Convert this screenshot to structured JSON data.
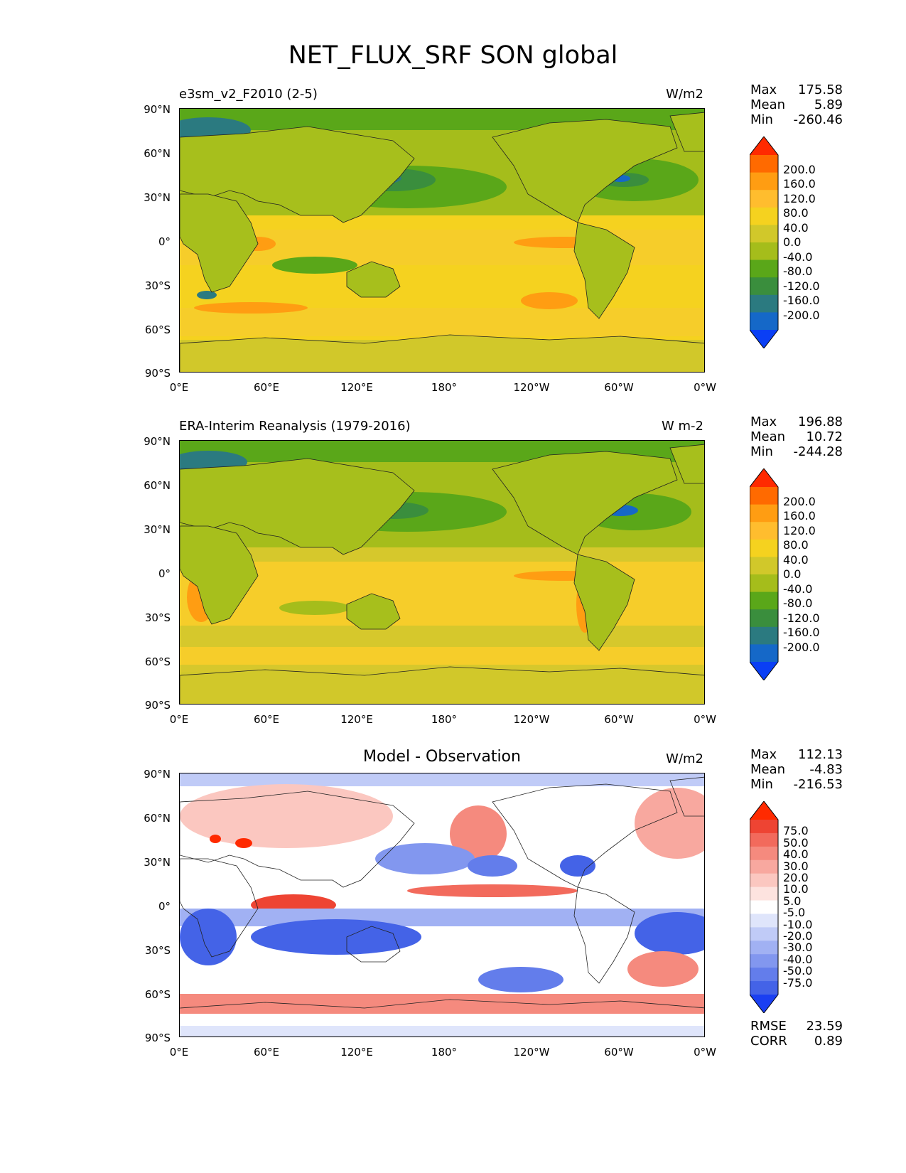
{
  "figure": {
    "title": "NET_FLUX_SRF SON global"
  },
  "axes": {
    "y_ticks": [
      "90°N",
      "60°N",
      "30°N",
      "0°",
      "30°S",
      "60°S",
      "90°S"
    ],
    "x_ticks": [
      "0°E",
      "60°E",
      "120°E",
      "180°",
      "120°W",
      "60°W",
      "0°W"
    ]
  },
  "panels": [
    {
      "id": "model",
      "title": "e3sm_v2_F2010 (2-5)",
      "units": "W/m2",
      "stats": {
        "max_label": "Max",
        "max": "175.58",
        "mean_label": "Mean",
        "mean": "5.89",
        "min_label": "Min",
        "min": "-260.46"
      },
      "colorbar": {
        "labels": [
          "200.0",
          "160.0",
          "120.0",
          "80.0",
          "40.0",
          "0.0",
          "-40.0",
          "-80.0",
          "-120.0",
          "-160.0",
          "-200.0"
        ],
        "colors": [
          "#ff2a00",
          "#ff6a00",
          "#ff9d12",
          "#ffbd2e",
          "#f5d21f",
          "#d1c82a",
          "#a5bd1b",
          "#5aa719",
          "#3a8e3d",
          "#2b7a80",
          "#1568c8",
          "#0a3ff5"
        ]
      }
    },
    {
      "id": "obs",
      "title": "ERA-Interim Reanalysis (1979-2016)",
      "units": "W m-2",
      "stats": {
        "max_label": "Max",
        "max": "196.88",
        "mean_label": "Mean",
        "mean": "10.72",
        "min_label": "Min",
        "min": "-244.28"
      },
      "colorbar": {
        "labels": [
          "200.0",
          "160.0",
          "120.0",
          "80.0",
          "40.0",
          "0.0",
          "-40.0",
          "-80.0",
          "-120.0",
          "-160.0",
          "-200.0"
        ],
        "colors": [
          "#ff2a00",
          "#ff6a00",
          "#ff9d12",
          "#ffbd2e",
          "#f5d21f",
          "#d1c82a",
          "#a5bd1b",
          "#5aa719",
          "#3a8e3d",
          "#2b7a80",
          "#1568c8",
          "#0a3ff5"
        ]
      }
    },
    {
      "id": "diff",
      "title": "Model - Observation",
      "units": "W/m2",
      "stats": {
        "max_label": "Max",
        "max": "112.13",
        "mean_label": "Mean",
        "mean": "-4.83",
        "min_label": "Min",
        "min": "-216.53"
      },
      "rmse_label": "RMSE",
      "rmse": "23.59",
      "corr_label": "CORR",
      "corr": "0.89",
      "colorbar": {
        "labels": [
          "75.0",
          "50.0",
          "40.0",
          "30.0",
          "20.0",
          "10.0",
          "5.0",
          "-5.0",
          "-10.0",
          "-20.0",
          "-30.0",
          "-40.0",
          "-50.0",
          "-75.0"
        ],
        "colors": [
          "#ff2a00",
          "#ee4433",
          "#f26a5c",
          "#f58a7e",
          "#f8a89f",
          "#fbc7c0",
          "#fde3df",
          "#ffffff",
          "#dfe5fb",
          "#c0cbf7",
          "#a1b1f3",
          "#8297ef",
          "#637deb",
          "#4463e7",
          "#1a3ff2"
        ]
      }
    }
  ],
  "colors": {
    "land_model": "#a7bf1c",
    "ocean_mid": "#d6c82c",
    "ocean_warm": "#f6cd2a",
    "diff_background": "#ffffff"
  }
}
